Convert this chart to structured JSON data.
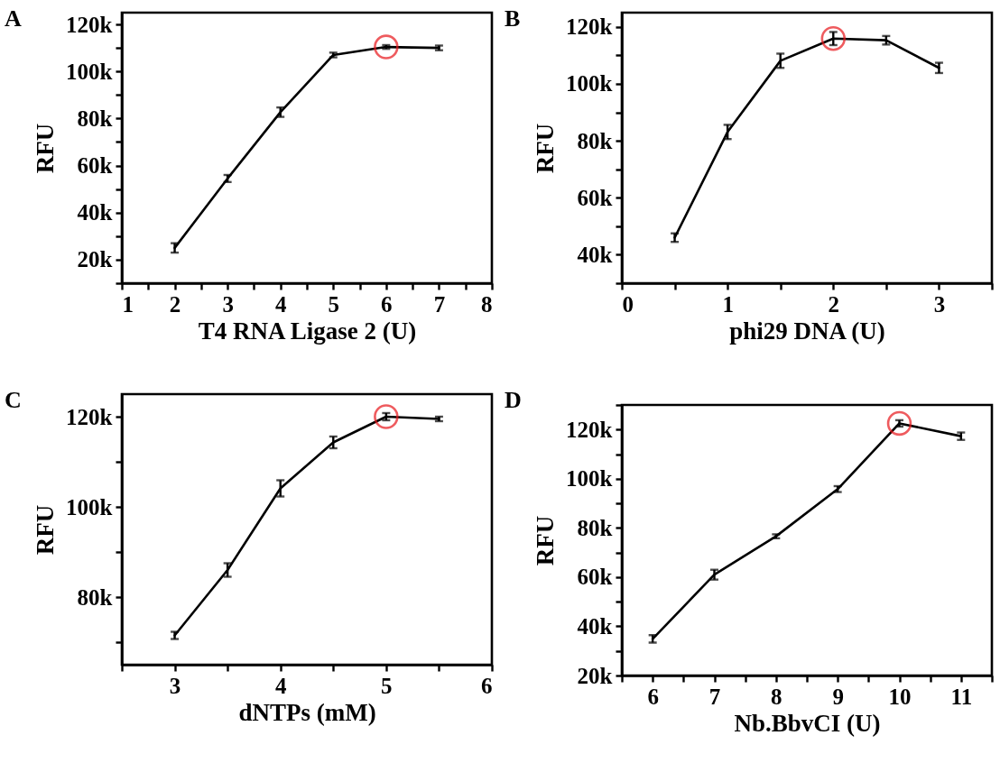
{
  "chart_data": [
    {
      "type": "line",
      "title": "A",
      "xlabel": "T4 RNA Ligase 2 (U)",
      "ylabel": "RFU",
      "marker": "none",
      "line_style": "solid",
      "grid": false,
      "x": [
        2,
        3,
        4,
        5,
        6,
        7
      ],
      "series": [
        {
          "color": "#000000",
          "values": [
            25000,
            54500,
            82700,
            107000,
            110400,
            110000
          ],
          "errors": [
            2000,
            1500,
            2000,
            1000,
            800,
            1000
          ]
        }
      ],
      "xlim": [
        1,
        8
      ],
      "xticks": [
        1,
        {
          "value": 1.5,
          "label": null
        },
        2,
        {
          "value": 2.5,
          "label": null
        },
        3,
        {
          "value": 3.5,
          "label": null
        },
        4,
        {
          "value": 4.5,
          "label": null
        },
        5,
        {
          "value": 5.5,
          "label": null
        },
        6,
        {
          "value": 6.5,
          "label": null
        },
        7,
        {
          "value": 7.5,
          "label": null
        },
        8
      ],
      "ylim": [
        10000,
        125000
      ],
      "yticks": [
        {
          "value": 10000,
          "label": null
        },
        {
          "value": 20000,
          "label": "20k"
        },
        {
          "value": 30000,
          "label": null
        },
        {
          "value": 40000,
          "label": "40k"
        },
        {
          "value": 50000,
          "label": null
        },
        {
          "value": 60000,
          "label": "60k"
        },
        {
          "value": 70000,
          "label": null
        },
        {
          "value": 80000,
          "label": "80k"
        },
        {
          "value": 90000,
          "label": null
        },
        {
          "value": 100000,
          "label": "100k"
        },
        {
          "value": 110000,
          "label": null
        },
        {
          "value": 120000,
          "label": "120k"
        }
      ]
    },
    {
      "type": "line",
      "title": "B",
      "xlabel": "phi29 DNA (U)",
      "ylabel": "RFU",
      "marker": "none",
      "line_style": "solid",
      "grid": false,
      "x": [
        0.5,
        1,
        1.5,
        2,
        2.5,
        3
      ],
      "series": [
        {
          "color": "#000000",
          "values": [
            46000,
            83100,
            108100,
            115900,
            115300,
            105600
          ],
          "errors": [
            1500,
            2500,
            2500,
            2300,
            1500,
            1800
          ]
        }
      ],
      "xlim": [
        0,
        3.5
      ],
      "xticks": [
        0,
        {
          "value": 0.5,
          "label": null
        },
        1,
        {
          "value": 1.5,
          "label": null
        },
        2,
        {
          "value": 2.5,
          "label": null
        },
        3,
        {
          "value": 3.5,
          "label": null
        }
      ],
      "ylim": [
        30000,
        125000
      ],
      "yticks": [
        {
          "value": 30000,
          "label": null
        },
        {
          "value": 40000,
          "label": "40k"
        },
        {
          "value": 50000,
          "label": null
        },
        {
          "value": 60000,
          "label": "60k"
        },
        {
          "value": 70000,
          "label": null
        },
        {
          "value": 80000,
          "label": "80k"
        },
        {
          "value": 90000,
          "label": null
        },
        {
          "value": 100000,
          "label": "100k"
        },
        {
          "value": 110000,
          "label": null
        },
        {
          "value": 120000,
          "label": "120k"
        }
      ]
    },
    {
      "type": "line",
      "title": "C",
      "xlabel": "dNTPs (mM)",
      "ylabel": "RFU",
      "marker": "none",
      "line_style": "solid",
      "grid": false,
      "x": [
        3,
        3.5,
        4,
        4.5,
        5,
        5.5
      ],
      "series": [
        {
          "color": "#000000",
          "values": [
            71500,
            86000,
            104100,
            114300,
            120000,
            119500
          ],
          "errors": [
            800,
            1500,
            1800,
            1300,
            800,
            500
          ]
        }
      ],
      "xlim": [
        2.5,
        6
      ],
      "xticks": [
        {
          "value": 2.5,
          "label": null
        },
        3,
        {
          "value": 3.5,
          "label": null
        },
        4,
        {
          "value": 4.5,
          "label": null
        },
        5,
        {
          "value": 5.5,
          "label": null
        },
        6
      ],
      "ylim": [
        65000,
        125000
      ],
      "yticks": [
        {
          "value": 70000,
          "label": null
        },
        {
          "value": 80000,
          "label": "80k"
        },
        {
          "value": 90000,
          "label": null
        },
        {
          "value": 100000,
          "label": "100k"
        },
        {
          "value": 110000,
          "label": null
        },
        {
          "value": 120000,
          "label": "120k"
        }
      ]
    },
    {
      "type": "line",
      "title": "D",
      "xlabel": "Nb.BbvCI (U)",
      "ylabel": "RFU",
      "marker": "none",
      "line_style": "solid",
      "grid": false,
      "x": [
        6,
        7,
        8,
        9,
        10,
        11
      ],
      "series": [
        {
          "color": "#000000",
          "values": [
            34900,
            61000,
            76600,
            95800,
            122500,
            117300
          ],
          "errors": [
            1500,
            2000,
            800,
            1200,
            1300,
            1500
          ]
        }
      ],
      "xlim": [
        5.5,
        11.5
      ],
      "xticks": [
        {
          "value": 5.5,
          "label": null
        },
        6,
        {
          "value": 6.5,
          "label": null
        },
        7,
        {
          "value": 7.5,
          "label": null
        },
        8,
        {
          "value": 8.5,
          "label": null
        },
        9,
        {
          "value": 9.5,
          "label": null
        },
        10,
        {
          "value": 10.5,
          "label": null
        },
        11,
        {
          "value": 11.5,
          "label": null
        }
      ],
      "ylim": [
        20000,
        130000
      ],
      "yticks": [
        {
          "value": 20000,
          "label": "20k"
        },
        {
          "value": 30000,
          "label": null
        },
        {
          "value": 40000,
          "label": "40k"
        },
        {
          "value": 50000,
          "label": null
        },
        {
          "value": 60000,
          "label": "60k"
        },
        {
          "value": 70000,
          "label": null
        },
        {
          "value": 80000,
          "label": "80k"
        },
        {
          "value": 90000,
          "label": null
        },
        {
          "value": 100000,
          "label": "100k"
        },
        {
          "value": 110000,
          "label": null
        },
        {
          "value": 120000,
          "label": "120k"
        },
        {
          "value": 130000,
          "label": null
        }
      ]
    }
  ]
}
